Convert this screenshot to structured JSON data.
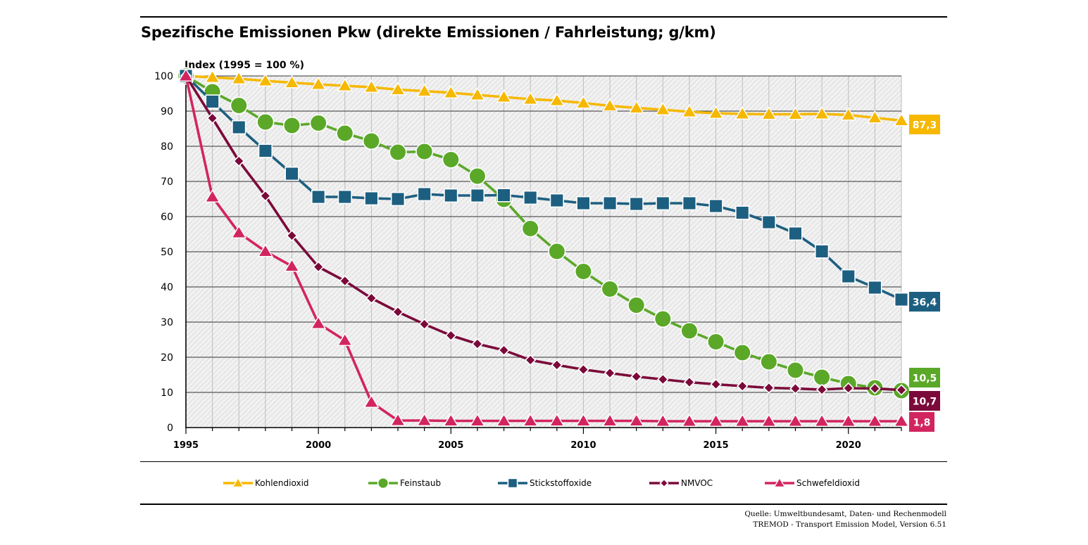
{
  "title": "Spezifische Emissionen Pkw (direkte Emissionen / Fahrleistung; g/km)",
  "source_line1": "Quelle: Umweltbundesamt, Daten- und Rechenmodell",
  "source_line2": "TREMOD - Transport Emission Model, Version 6.51",
  "chart_data": {
    "type": "line",
    "ylabel": "Index (1995 = 100 %)",
    "ylim": [
      0,
      100
    ],
    "yticks": [
      0,
      10,
      20,
      30,
      40,
      50,
      60,
      70,
      80,
      90,
      100
    ],
    "xlim": [
      1995,
      2022
    ],
    "xticks": [
      1995,
      2000,
      2005,
      2010,
      2015,
      2020
    ],
    "grid": true,
    "legend_position": "bottom",
    "x": [
      1995,
      1996,
      1997,
      1998,
      1999,
      2000,
      2001,
      2002,
      2003,
      2004,
      2005,
      2006,
      2007,
      2008,
      2009,
      2010,
      2011,
      2012,
      2013,
      2014,
      2015,
      2016,
      2017,
      2018,
      2019,
      2020,
      2021,
      2022
    ],
    "series": [
      {
        "name": "Kohlendioxid",
        "color": "#f6b800",
        "marker": "triangle",
        "values": [
          100,
          99.6,
          99.2,
          98.6,
          98.1,
          97.6,
          97.2,
          96.8,
          96.1,
          95.7,
          95.2,
          94.6,
          94,
          93.4,
          93,
          92.3,
          91.5,
          90.9,
          90.4,
          89.8,
          89.4,
          89.2,
          89.1,
          89.1,
          89.2,
          88.9,
          88.1,
          87.3
        ],
        "end_label": "87,3"
      },
      {
        "name": "Feinstaub",
        "color": "#5ba829",
        "marker": "circle",
        "values": [
          100,
          95.5,
          91.6,
          86.9,
          85.9,
          86.6,
          83.7,
          81.5,
          78.3,
          78.5,
          76.2,
          71.5,
          64.9,
          56.6,
          50.1,
          44.4,
          39.4,
          34.8,
          30.9,
          27.5,
          24.4,
          21.3,
          18.7,
          16.3,
          14.3,
          12.5,
          11.3,
          10.5
        ],
        "end_label": "10,5"
      },
      {
        "name": "Stickstoffoxide",
        "color": "#1d5f80",
        "marker": "square",
        "values": [
          100,
          92.7,
          85.4,
          78.7,
          72.2,
          65.6,
          65.6,
          65.2,
          65,
          66.4,
          66,
          66,
          66.1,
          65.4,
          64.6,
          63.8,
          63.8,
          63.6,
          63.8,
          63.8,
          63,
          61.1,
          58.4,
          55.2,
          50.1,
          43,
          39.8,
          36.4
        ],
        "end_label": "36,4"
      },
      {
        "name": "NMVOC",
        "color": "#7b0a3a",
        "marker": "diamond",
        "values": [
          100,
          88,
          75.8,
          65.9,
          54.6,
          45.7,
          41.7,
          36.8,
          32.9,
          29.4,
          26.2,
          23.8,
          22,
          19.2,
          17.8,
          16.5,
          15.5,
          14.5,
          13.7,
          12.9,
          12.3,
          11.8,
          11.3,
          11.1,
          10.8,
          11.2,
          11.1,
          10.7
        ],
        "end_label": "10,7"
      },
      {
        "name": "Schwefeldioxid",
        "color": "#d22560",
        "marker": "triangle",
        "values": [
          100,
          65.6,
          55.4,
          50.1,
          45.9,
          29.6,
          24.8,
          7.2,
          2,
          2,
          1.9,
          1.9,
          1.9,
          1.9,
          1.9,
          1.9,
          1.9,
          1.9,
          1.8,
          1.8,
          1.8,
          1.8,
          1.8,
          1.8,
          1.8,
          1.8,
          1.8,
          1.8
        ],
        "end_label": "1,8"
      }
    ]
  }
}
